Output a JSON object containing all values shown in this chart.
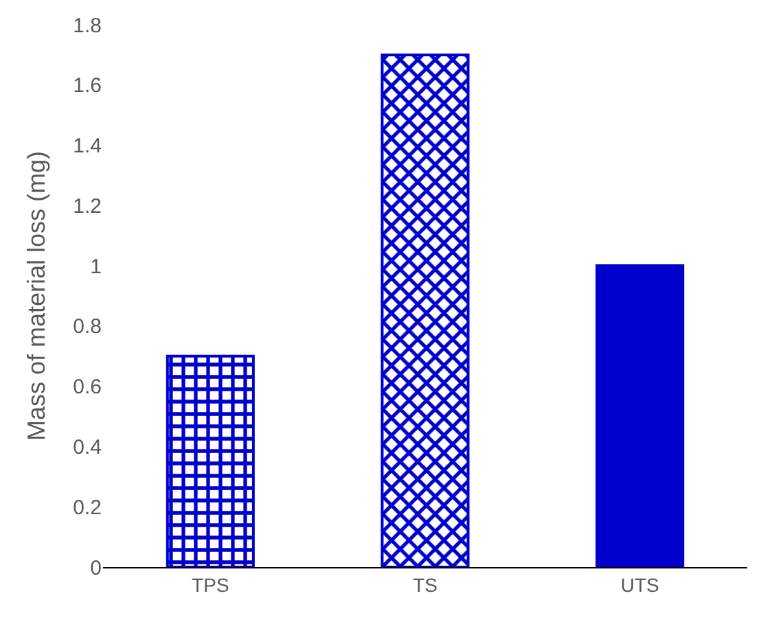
{
  "chart_data": {
    "type": "bar",
    "ylabel": "Mass of material loss (mg)",
    "categories": [
      "TPS",
      "TS",
      "UTS"
    ],
    "values": [
      0.7,
      1.7,
      1.0
    ],
    "colors": [
      "#0000cc",
      "#0000cc",
      "#0000cc"
    ],
    "ylim": [
      0,
      1.8
    ],
    "yticks": [
      0,
      0.2,
      0.4,
      0.6,
      0.8,
      1,
      1.2,
      1.4,
      1.6,
      1.8
    ],
    "legend": false
  }
}
